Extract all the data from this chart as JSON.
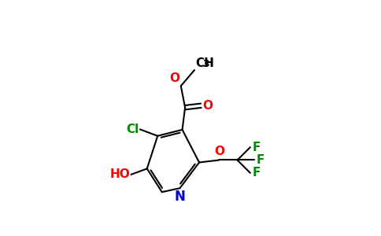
{
  "background_color": "#ffffff",
  "bond_color": "#000000",
  "atom_colors": {
    "O": "#ff0000",
    "N": "#0000cc",
    "Cl": "#008800",
    "F": "#008800",
    "HO": "#ff0000",
    "C": "#000000"
  },
  "font_size": 11,
  "font_size_small": 9,
  "bond_width": 1.5
}
